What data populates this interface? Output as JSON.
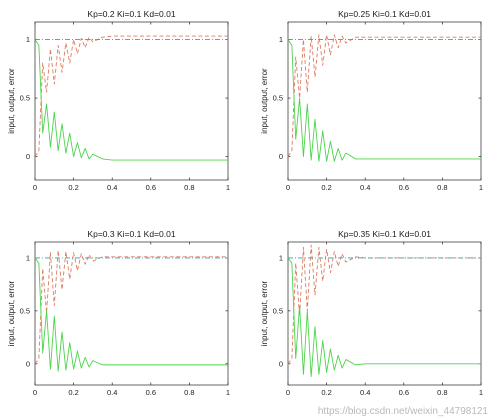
{
  "chart_data": [
    {
      "type": "line",
      "title": "Kp=0.2 Ki=0.1 Kd=0.01",
      "ylabel": "input, output, error",
      "xlim": [
        0,
        1
      ],
      "ylim": [
        -0.2,
        1.15
      ],
      "xticks": [
        "0",
        "0.2",
        "0.4",
        "0.6",
        "0.8",
        "1"
      ],
      "yticks": [
        "0",
        "0.5",
        "1"
      ],
      "series": [
        {
          "role": "input",
          "color": "#3aa0a8",
          "style": "dash-dot",
          "x": [
            0,
            0.02,
            1
          ],
          "y": [
            1,
            1,
            1
          ]
        },
        {
          "role": "output",
          "color": "#e07a5f",
          "style": "dashed",
          "x": [
            0,
            0.02,
            0.04,
            0.06,
            0.08,
            0.1,
            0.12,
            0.14,
            0.16,
            0.18,
            0.2,
            0.22,
            0.24,
            0.26,
            0.28,
            0.3,
            0.35,
            0.4,
            0.45,
            0.5,
            1
          ],
          "y": [
            0,
            0.05,
            0.8,
            0.55,
            0.92,
            0.62,
            0.95,
            0.72,
            0.97,
            0.8,
            1.0,
            0.88,
            1.01,
            0.93,
            1.02,
            0.98,
            1.02,
            1.03,
            1.03,
            1.03,
            1.03
          ]
        },
        {
          "role": "error",
          "color": "#4cd44c",
          "style": "solid",
          "x": [
            0,
            0.02,
            0.04,
            0.06,
            0.08,
            0.1,
            0.12,
            0.14,
            0.16,
            0.18,
            0.2,
            0.22,
            0.24,
            0.26,
            0.28,
            0.3,
            0.35,
            0.4,
            0.45,
            0.5,
            1
          ],
          "y": [
            1,
            0.95,
            0.2,
            0.45,
            0.08,
            0.38,
            0.05,
            0.28,
            0.03,
            0.2,
            0.0,
            0.12,
            -0.01,
            0.07,
            -0.02,
            0.02,
            -0.02,
            -0.03,
            -0.03,
            -0.03,
            -0.03
          ]
        }
      ]
    },
    {
      "type": "line",
      "title": "Kp=0.25 Ki=0.1 Kd=0.01",
      "ylabel": "input, output, error",
      "xlim": [
        0,
        1
      ],
      "ylim": [
        -0.2,
        1.15
      ],
      "xticks": [
        "0",
        "0.2",
        "0.4",
        "0.6",
        "0.8",
        "1"
      ],
      "yticks": [
        "0",
        "0.5",
        "1"
      ],
      "series": [
        {
          "role": "input",
          "color": "#3aa0a8",
          "style": "dash-dot",
          "x": [
            0,
            0.02,
            1
          ],
          "y": [
            1,
            1,
            1
          ]
        },
        {
          "role": "output",
          "color": "#e07a5f",
          "style": "dashed",
          "x": [
            0,
            0.02,
            0.04,
            0.06,
            0.08,
            0.1,
            0.12,
            0.14,
            0.16,
            0.18,
            0.2,
            0.22,
            0.24,
            0.26,
            0.28,
            0.3,
            0.35,
            0.4,
            0.45,
            0.5,
            1
          ],
          "y": [
            0,
            0.05,
            0.85,
            0.5,
            1.0,
            0.55,
            1.03,
            0.68,
            1.04,
            0.78,
            1.04,
            0.87,
            1.04,
            0.93,
            1.03,
            0.97,
            1.02,
            1.02,
            1.02,
            1.02,
            1.02
          ]
        },
        {
          "role": "error",
          "color": "#4cd44c",
          "style": "solid",
          "x": [
            0,
            0.02,
            0.04,
            0.06,
            0.08,
            0.1,
            0.12,
            0.14,
            0.16,
            0.18,
            0.2,
            0.22,
            0.24,
            0.26,
            0.28,
            0.3,
            0.35,
            0.4,
            0.45,
            0.5,
            1
          ],
          "y": [
            1,
            0.95,
            0.15,
            0.5,
            0.0,
            0.45,
            -0.03,
            0.32,
            -0.04,
            0.22,
            -0.04,
            0.13,
            -0.04,
            0.07,
            -0.03,
            0.03,
            -0.02,
            -0.02,
            -0.02,
            -0.02,
            -0.02
          ]
        }
      ]
    },
    {
      "type": "line",
      "title": "Kp=0.3 Ki=0.1 Kd=0.01",
      "ylabel": "input, output, error",
      "xlim": [
        0,
        1
      ],
      "ylim": [
        -0.2,
        1.15
      ],
      "xticks": [
        "0",
        "0.2",
        "0.4",
        "0.6",
        "0.8",
        "1"
      ],
      "yticks": [
        "0",
        "0.5",
        "1"
      ],
      "series": [
        {
          "role": "input",
          "color": "#3aa0a8",
          "style": "dash-dot",
          "x": [
            0,
            0.02,
            1
          ],
          "y": [
            1,
            1,
            1
          ]
        },
        {
          "role": "output",
          "color": "#e07a5f",
          "style": "dashed",
          "x": [
            0,
            0.02,
            0.04,
            0.06,
            0.08,
            0.1,
            0.12,
            0.14,
            0.16,
            0.18,
            0.2,
            0.22,
            0.24,
            0.26,
            0.28,
            0.3,
            0.35,
            0.4,
            0.45,
            0.5,
            1
          ],
          "y": [
            0,
            0.05,
            0.9,
            0.48,
            1.05,
            0.55,
            1.07,
            0.7,
            1.06,
            0.8,
            1.05,
            0.88,
            1.04,
            0.94,
            1.03,
            0.97,
            1.01,
            1.01,
            1.01,
            1.01,
            1.01
          ]
        },
        {
          "role": "error",
          "color": "#4cd44c",
          "style": "solid",
          "x": [
            0,
            0.02,
            0.04,
            0.06,
            0.08,
            0.1,
            0.12,
            0.14,
            0.16,
            0.18,
            0.2,
            0.22,
            0.24,
            0.26,
            0.28,
            0.3,
            0.35,
            0.4,
            0.45,
            0.5,
            1
          ],
          "y": [
            1,
            0.95,
            0.1,
            0.5,
            -0.05,
            0.45,
            -0.07,
            0.3,
            -0.06,
            0.2,
            -0.05,
            0.12,
            -0.04,
            0.06,
            -0.03,
            0.03,
            -0.01,
            -0.01,
            -0.01,
            -0.01,
            -0.01
          ]
        }
      ]
    },
    {
      "type": "line",
      "title": "Kp=0.35 Ki=0.1 Kd=0.01",
      "ylabel": "input, output, error",
      "xlim": [
        0,
        1
      ],
      "ylim": [
        -0.2,
        1.15
      ],
      "xticks": [
        "0",
        "0.2",
        "0.4",
        "0.6",
        "0.8",
        "1"
      ],
      "yticks": [
        "0",
        "0.5",
        "1"
      ],
      "series": [
        {
          "role": "input",
          "color": "#3aa0a8",
          "style": "dash-dot",
          "x": [
            0,
            0.02,
            1
          ],
          "y": [
            1,
            1,
            1
          ]
        },
        {
          "role": "output",
          "color": "#e07a5f",
          "style": "dashed",
          "x": [
            0,
            0.02,
            0.04,
            0.06,
            0.08,
            0.1,
            0.12,
            0.14,
            0.16,
            0.18,
            0.2,
            0.22,
            0.24,
            0.26,
            0.28,
            0.3,
            0.35,
            0.4,
            0.45,
            0.5,
            1
          ],
          "y": [
            0,
            0.05,
            0.95,
            0.45,
            1.1,
            0.5,
            1.12,
            0.65,
            1.1,
            0.78,
            1.08,
            0.86,
            1.06,
            0.92,
            1.04,
            0.96,
            1.01,
            1.0,
            1.0,
            1.0,
            1.0
          ]
        },
        {
          "role": "error",
          "color": "#4cd44c",
          "style": "solid",
          "x": [
            0,
            0.02,
            0.04,
            0.06,
            0.08,
            0.1,
            0.12,
            0.14,
            0.16,
            0.18,
            0.2,
            0.22,
            0.24,
            0.26,
            0.28,
            0.3,
            0.35,
            0.4,
            0.45,
            0.5,
            1
          ],
          "y": [
            1,
            0.95,
            0.05,
            0.55,
            -0.1,
            0.5,
            -0.12,
            0.35,
            -0.1,
            0.22,
            -0.08,
            0.14,
            -0.06,
            0.08,
            -0.04,
            0.04,
            -0.01,
            0.0,
            0.0,
            0.0,
            0.0
          ]
        }
      ]
    }
  ],
  "watermark": "https://blog.csdn.net/weixin_44798121"
}
